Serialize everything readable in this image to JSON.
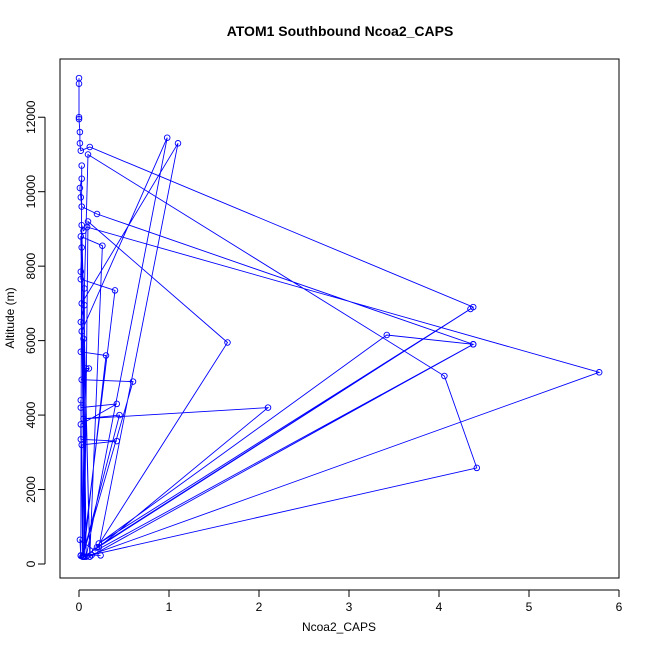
{
  "chart_data": {
    "type": "line",
    "title": "ATOM1 Southbound Ncoa2_CAPS",
    "xlabel": "Ncoa2_CAPS",
    "ylabel": "Altitude (m)",
    "xlim": [
      0,
      6
    ],
    "ylim": [
      0,
      13000
    ],
    "xticks": [
      "0",
      "1",
      "2",
      "3",
      "4",
      "5",
      "6"
    ],
    "yticks": [
      "0",
      "2000",
      "4000",
      "6000",
      "8000",
      "10000",
      "12000"
    ],
    "color": "#0000ff",
    "marker": "open-circle",
    "grid": false,
    "series": [
      {
        "points": [
          [
            0.0,
            13050
          ],
          [
            0.0,
            12900
          ],
          [
            0.0,
            12000
          ],
          [
            0.0,
            11950
          ],
          [
            0.01,
            11600
          ],
          [
            0.01,
            11300
          ],
          [
            0.02,
            11100
          ],
          [
            0.12,
            11200
          ],
          [
            4.38,
            6900
          ],
          [
            0.05,
            200
          ],
          [
            0.02,
            230
          ],
          [
            0.03,
            10700
          ],
          [
            0.03,
            10350
          ],
          [
            0.01,
            10100
          ],
          [
            0.02,
            9850
          ],
          [
            0.03,
            9600
          ],
          [
            0.2,
            9400
          ],
          [
            4.38,
            5900
          ],
          [
            0.12,
            200
          ],
          [
            0.03,
            9100
          ],
          [
            0.05,
            8950
          ],
          [
            0.09,
            9050
          ],
          [
            5.78,
            5150
          ],
          [
            0.08,
            200
          ],
          [
            0.02,
            8800
          ],
          [
            0.26,
            8550
          ],
          [
            0.12,
            200
          ],
          [
            0.03,
            8500
          ],
          [
            0.02,
            7850
          ],
          [
            0.02,
            7650
          ],
          [
            0.4,
            7350
          ],
          [
            0.04,
            200
          ],
          [
            0.06,
            7400
          ],
          [
            0.1,
            11000
          ],
          [
            4.06,
            5050
          ],
          [
            4.42,
            2580
          ],
          [
            0.06,
            200
          ],
          [
            0.06,
            6950
          ],
          [
            0.02,
            6500
          ],
          [
            0.03,
            6250
          ],
          [
            0.98,
            11450
          ],
          [
            0.08,
            200
          ],
          [
            0.05,
            6050
          ],
          [
            0.02,
            5700
          ],
          [
            0.3,
            5600
          ],
          [
            0.05,
            200
          ],
          [
            0.08,
            5250
          ],
          [
            0.11,
            5250
          ],
          [
            0.03,
            4950
          ],
          [
            0.6,
            4900
          ],
          [
            0.04,
            200
          ],
          [
            0.02,
            4400
          ],
          [
            0.02,
            4200
          ],
          [
            0.42,
            4300
          ],
          [
            0.02,
            3750
          ],
          [
            0.02,
            3350
          ],
          [
            0.42,
            3300
          ],
          [
            0.03,
            3200
          ],
          [
            0.04,
            200
          ],
          [
            0.45,
            4000
          ],
          [
            0.05,
            3900
          ],
          [
            2.1,
            4200
          ],
          [
            0.22,
            450
          ],
          [
            1.1,
            11300
          ],
          [
            0.03,
            7000
          ],
          [
            0.06,
            200
          ],
          [
            0.1,
            9200
          ],
          [
            1.65,
            5950
          ],
          [
            0.2,
            450
          ],
          [
            4.35,
            6850
          ],
          [
            0.22,
            550
          ],
          [
            3.42,
            6150
          ],
          [
            4.38,
            5900
          ],
          [
            0.18,
            350
          ],
          [
            0.01,
            650
          ],
          [
            0.02,
            220
          ],
          [
            0.14,
            240
          ],
          [
            0.24,
            230
          ]
        ]
      }
    ]
  }
}
